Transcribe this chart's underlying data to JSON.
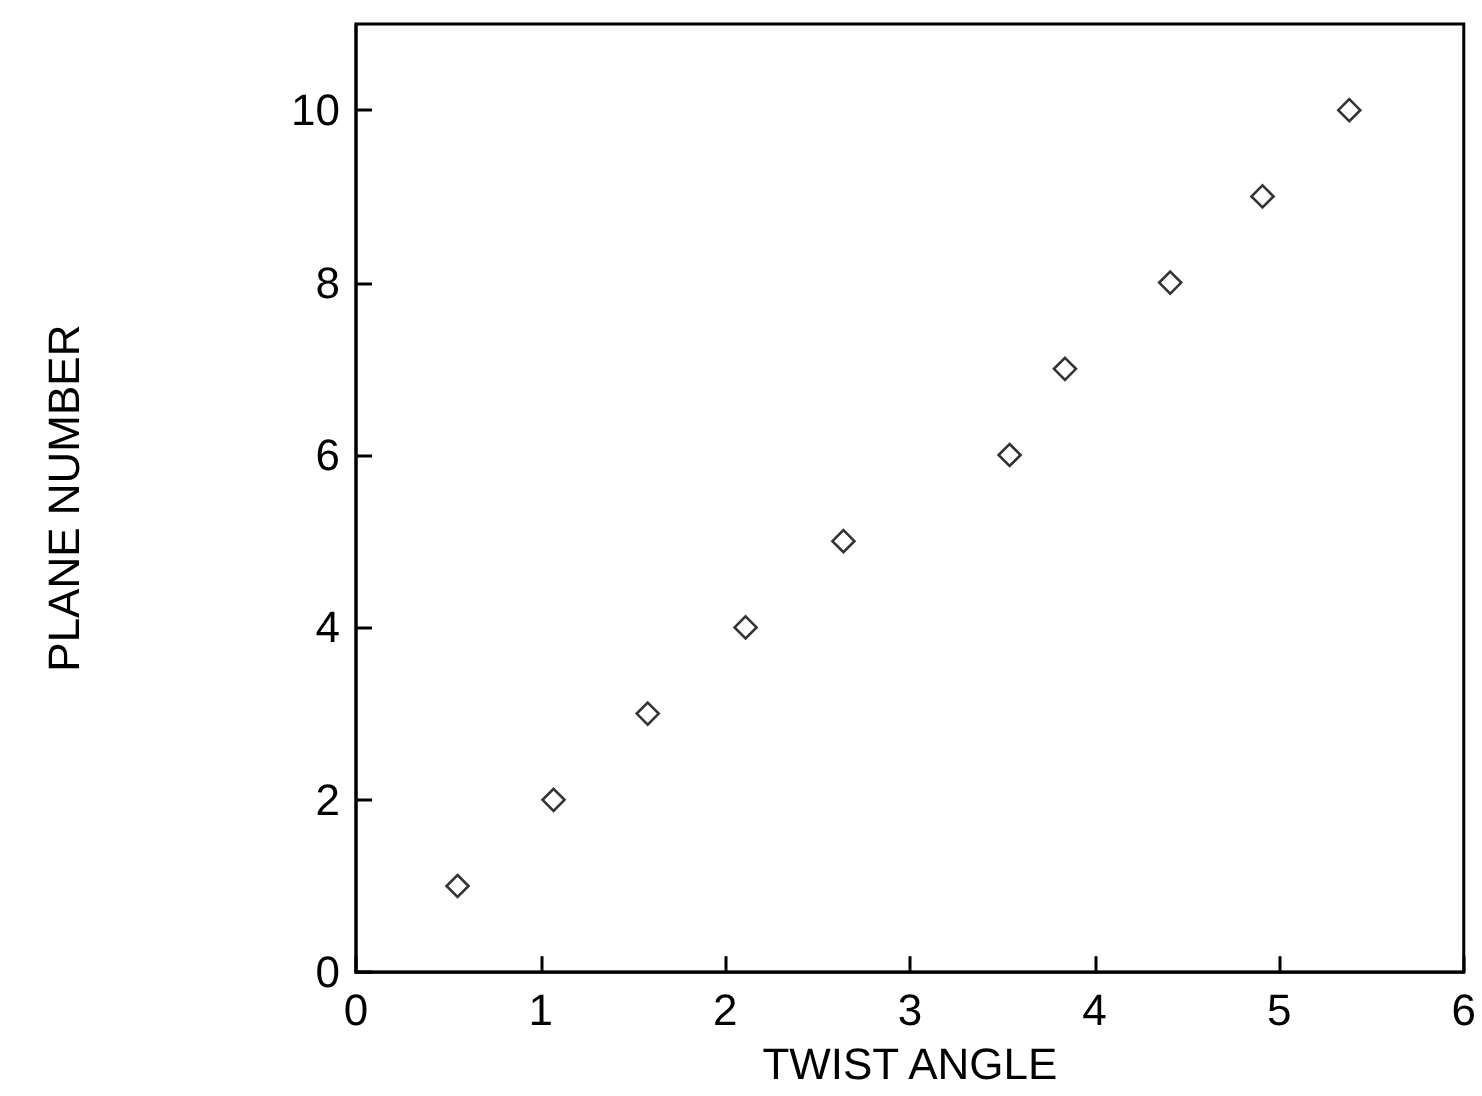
{
  "chart_data": {
    "type": "scatter",
    "xlabel": "TWIST ANGLE",
    "ylabel": "PLANE NUMBER",
    "x": [
      0.55,
      1.07,
      1.58,
      2.11,
      2.64,
      3.54,
      3.84,
      4.41,
      4.91,
      5.38
    ],
    "values": [
      1,
      2,
      3,
      4,
      5,
      6,
      7,
      8,
      9,
      10
    ],
    "color": "#000000",
    "marker": "diamond",
    "xlim": [
      0,
      6
    ],
    "ylim": [
      0,
      11
    ],
    "xticks": [
      0,
      1,
      2,
      3,
      4,
      5,
      6
    ],
    "yticks": [
      0,
      2,
      4,
      6,
      8,
      10
    ],
    "grid": false
  }
}
